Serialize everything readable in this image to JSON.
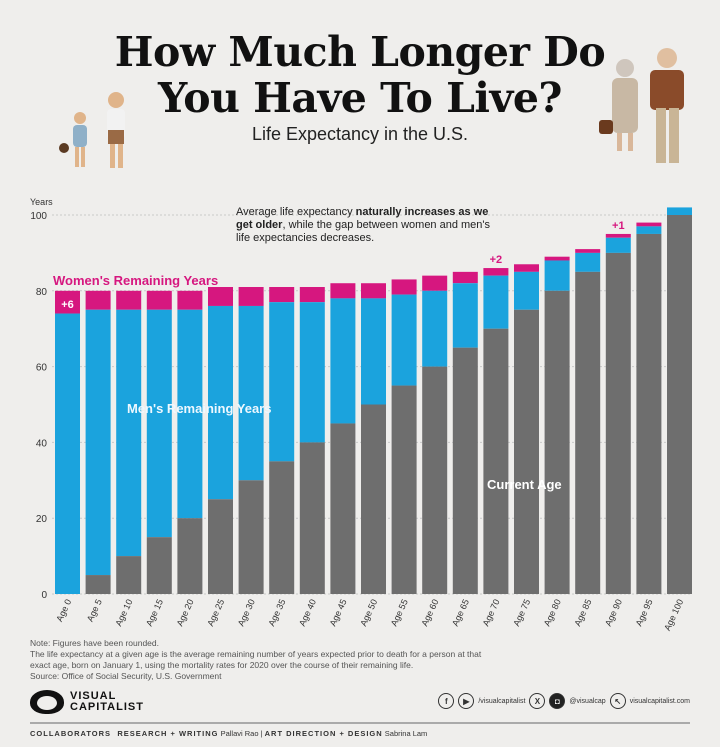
{
  "header": {
    "title_line1": "How Much Longer Do",
    "title_line2": "You Have To Live?",
    "subtitle": "Life Expectancy in the U.S."
  },
  "chart_data": {
    "type": "bar",
    "stacked": true,
    "ylabel": "Years",
    "ylim": [
      0,
      100
    ],
    "yticks": [
      0,
      20,
      40,
      60,
      80,
      100
    ],
    "grid": true,
    "categories": [
      "Age 0",
      "Age 5",
      "Age 10",
      "Age 15",
      "Age 20",
      "Age 25",
      "Age 30",
      "Age 35",
      "Age 40",
      "Age 45",
      "Age 50",
      "Age 55",
      "Age 60",
      "Age 65",
      "Age 70",
      "Age 75",
      "Age 80",
      "Age 85",
      "Age 90",
      "Age 95",
      "Age 100"
    ],
    "current_age": [
      0,
      5,
      10,
      15,
      20,
      25,
      30,
      35,
      40,
      45,
      50,
      55,
      60,
      65,
      70,
      75,
      80,
      85,
      90,
      95,
      100
    ],
    "men_life_expectancy": [
      74,
      75,
      75,
      75,
      75,
      76,
      76,
      77,
      77,
      78,
      78,
      79,
      80,
      82,
      84,
      85,
      88,
      90,
      94,
      97,
      102
    ],
    "women_life_expectancy": [
      80,
      80,
      80,
      80,
      80,
      81,
      81,
      81,
      81,
      82,
      82,
      83,
      84,
      85,
      86,
      87,
      89,
      91,
      95,
      98,
      102
    ],
    "series": [
      {
        "name": "Current Age",
        "color": "#6e6e6e"
      },
      {
        "name": "Men's Remaining Years",
        "color": "#1ba3dd"
      },
      {
        "name": "Women's Remaining Years",
        "color": "#d6177f"
      }
    ],
    "annotations": [
      {
        "category": "Age 0",
        "text": "+6"
      },
      {
        "category": "Age 70",
        "text": "+2"
      },
      {
        "category": "Age 90",
        "text": "+1"
      }
    ],
    "callout": {
      "pre": "Average life expectancy ",
      "bold1": "naturally increases as we get older",
      "post": ", while the gap between women and men's life expectancies decreases."
    }
  },
  "footer": {
    "note1": "Note: Figures have been rounded.",
    "note2": "The life expectancy at a given age is the average remaining number of years expected prior to death for a person at that exact age, born on January 1, using the mortality rates for 2020 over the course of their remaining life.",
    "source": "Source: Office of Social Security, U.S. Government",
    "logo_line1": "VISUAL",
    "logo_line2": "CAPITALIST",
    "social1": "/visualcapitalist",
    "social2": "@visualcap",
    "social3": "visualcapitalist.com",
    "collab_label": "COLLABORATORS",
    "role1": "RESEARCH + WRITING",
    "name1": "Pallavi Rao",
    "role2": "ART DIRECTION + DESIGN",
    "name2": "Sabrina Lam"
  }
}
